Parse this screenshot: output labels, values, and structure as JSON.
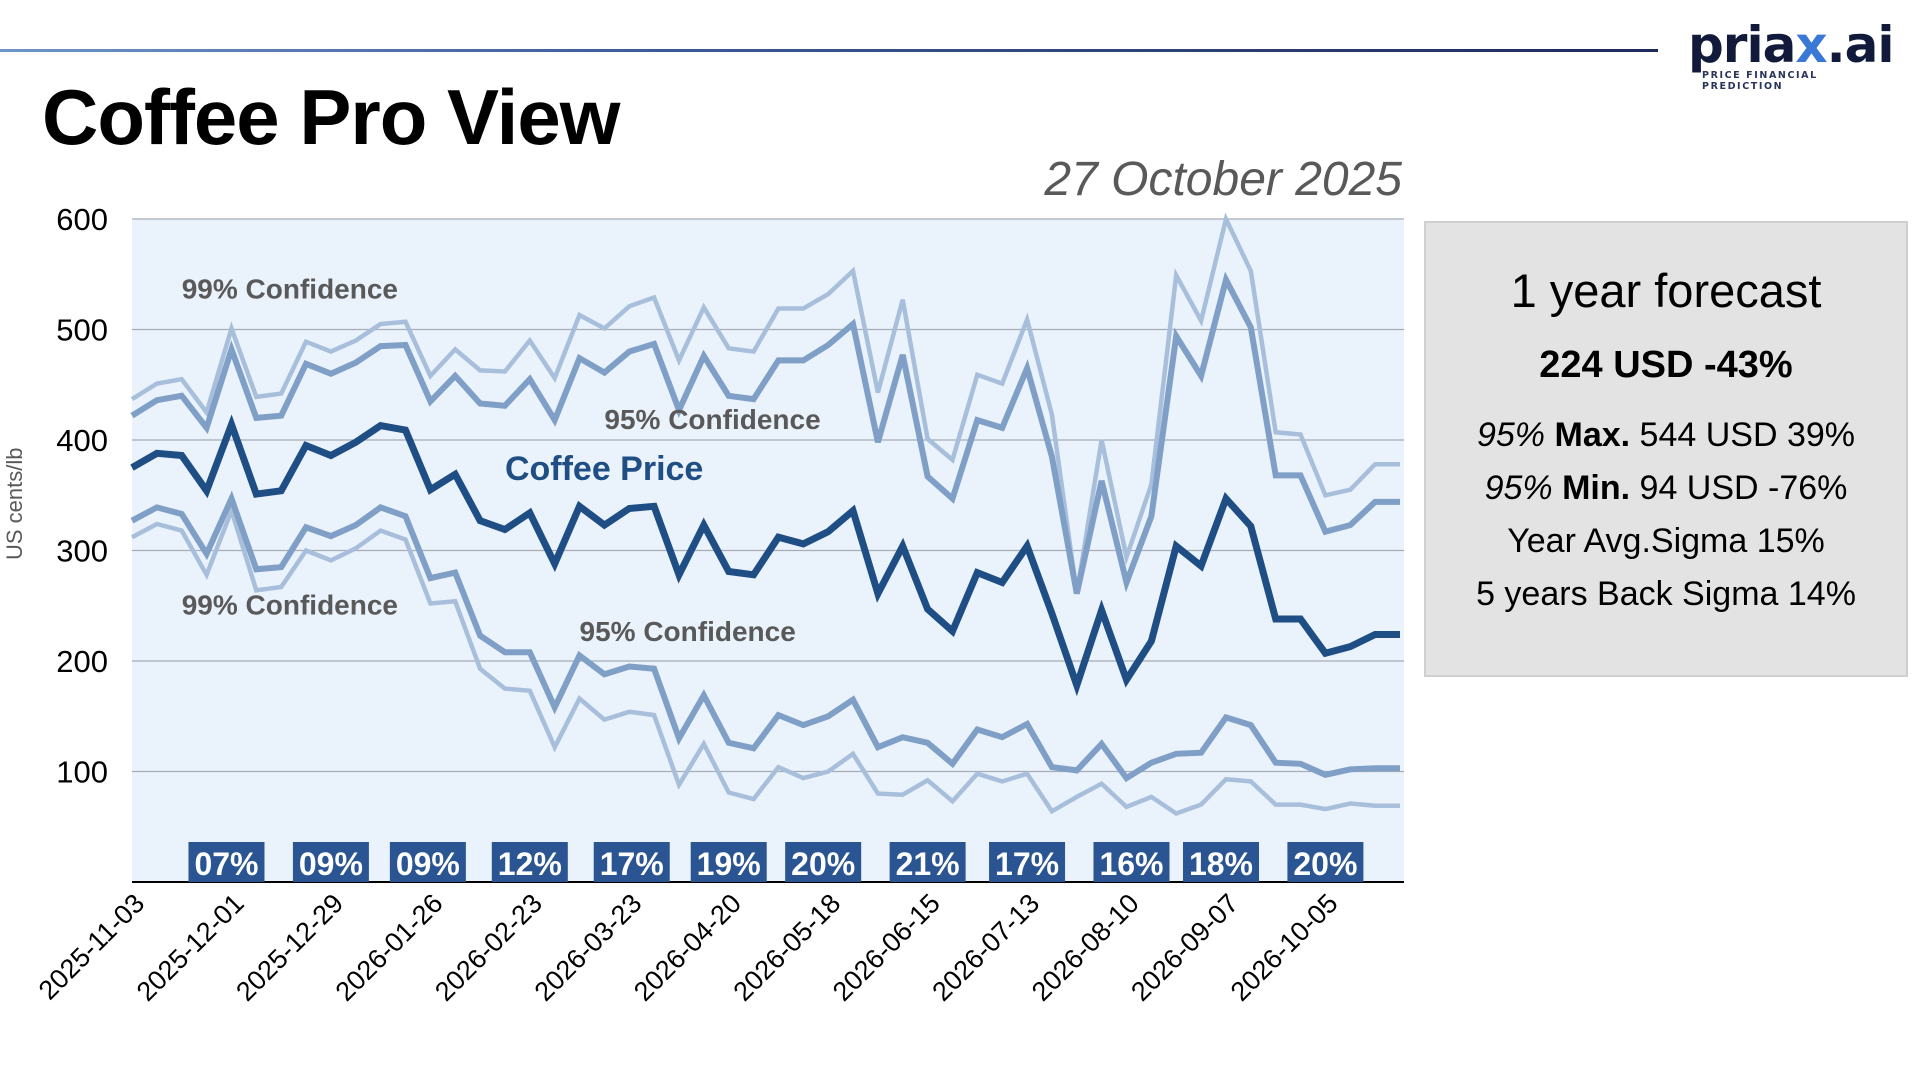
{
  "header": {
    "title": "Coffee Pro View",
    "date": "27 October 2025",
    "logo_text_main": "priax",
    "logo_text_dot": ".",
    "logo_text_suffix": "ai",
    "logo_x": "x",
    "logo_tagline": "PRICE FINANCIAL PREDICTION"
  },
  "colors": {
    "price": "#1f4e85",
    "band95": "#7f9fc6",
    "band99": "#a8bfdc",
    "plot_bg": "#eaf2fc",
    "badge": "#2a5592",
    "label_gray": "#595959"
  },
  "forecast_box": {
    "heading": "1 year forecast",
    "main": "224 USD -43%",
    "max_prefix": "95%",
    "max_label": "Max.",
    "max_value": "544 USD 39%",
    "min_prefix": "95%",
    "min_label": "Min.",
    "min_value": "94 USD -76%",
    "year_sigma": "Year Avg.Sigma 15%",
    "back_sigma": "5 years Back Sigma 14%"
  },
  "chart_data": {
    "type": "line",
    "title": "Coffee Pro View",
    "xlabel": "",
    "ylabel": "US cents/lb",
    "ylim": [
      0,
      600
    ],
    "yticks": [
      100,
      200,
      300,
      400,
      500,
      600
    ],
    "grid": true,
    "x_tick_labels": [
      "2025-11-03",
      "2025-12-01",
      "2025-12-29",
      "2026-01-26",
      "2026-02-23",
      "2026-03-23",
      "2026-04-20",
      "2026-05-18",
      "2026-06-15",
      "2026-07-13",
      "2026-08-10",
      "2026-09-07",
      "2026-10-05"
    ],
    "x_tick_every": 4,
    "n_points": 52,
    "annotations": [
      {
        "text": "99% Confidence",
        "series": "upper_99",
        "value": 528,
        "index": 2
      },
      {
        "text": "95% Confidence",
        "series": "upper_95",
        "value": 410,
        "index": 19
      },
      {
        "text": "Coffee Price",
        "series": "price",
        "value": 364,
        "index": 15
      },
      {
        "text": "99% Confidence",
        "series": "lower_99",
        "value": 242,
        "index": 2
      },
      {
        "text": "95% Confidence",
        "series": "lower_95",
        "value": 218,
        "index": 18
      }
    ],
    "series": [
      {
        "name": "upper_99",
        "label": "99% Confidence",
        "values": [
          437,
          451,
          455,
          425,
          501,
          439,
          442,
          489,
          480,
          490,
          505,
          507,
          458,
          482,
          463,
          462,
          490,
          456,
          513,
          501,
          521,
          529,
          472,
          520,
          483,
          480,
          519,
          519,
          532,
          553,
          443,
          527,
          401,
          382,
          459,
          451,
          509,
          423,
          261,
          400,
          294,
          360,
          549,
          508,
          600,
          553,
          407,
          405,
          350,
          355,
          378,
          378
        ]
      },
      {
        "name": "upper_95",
        "label": "95% Confidence",
        "values": [
          422,
          436,
          440,
          411,
          482,
          420,
          422,
          469,
          460,
          470,
          485,
          486,
          435,
          458,
          433,
          431,
          455,
          418,
          474,
          461,
          480,
          487,
          427,
          476,
          440,
          437,
          472,
          472,
          486,
          505,
          398,
          477,
          367,
          347,
          418,
          411,
          465,
          385,
          261,
          363,
          271,
          331,
          494,
          458,
          545,
          502,
          368,
          368,
          317,
          323,
          344,
          344
        ]
      },
      {
        "name": "price",
        "label": "Coffee Price",
        "values": [
          375,
          388,
          386,
          354,
          414,
          351,
          354,
          395,
          386,
          398,
          413,
          409,
          355,
          369,
          327,
          319,
          334,
          288,
          340,
          323,
          338,
          340,
          278,
          323,
          281,
          278,
          312,
          306,
          317,
          336,
          261,
          304,
          247,
          227,
          280,
          271,
          304,
          243,
          178,
          246,
          183,
          218,
          304,
          286,
          347,
          322,
          238,
          238,
          207,
          213,
          224,
          224
        ]
      },
      {
        "name": "lower_95",
        "label": "95% Confidence",
        "values": [
          327,
          339,
          333,
          297,
          347,
          283,
          285,
          321,
          313,
          323,
          339,
          331,
          275,
          280,
          223,
          208,
          208,
          158,
          205,
          188,
          195,
          193,
          130,
          169,
          126,
          121,
          151,
          142,
          150,
          165,
          122,
          131,
          126,
          107,
          138,
          131,
          143,
          104,
          101,
          125,
          94,
          108,
          116,
          117,
          149,
          142,
          108,
          107,
          97,
          102,
          103,
          103
        ]
      },
      {
        "name": "lower_99",
        "label": "99% Confidence",
        "values": [
          312,
          324,
          318,
          278,
          336,
          264,
          267,
          300,
          291,
          302,
          318,
          310,
          252,
          254,
          193,
          175,
          173,
          122,
          166,
          147,
          154,
          151,
          88,
          125,
          81,
          75,
          104,
          94,
          100,
          116,
          80,
          79,
          92,
          73,
          98,
          91,
          98,
          64,
          77,
          89,
          68,
          77,
          62,
          70,
          93,
          91,
          70,
          70,
          66,
          71,
          69,
          69
        ]
      }
    ],
    "sigma_badges": [
      {
        "text": "07%",
        "index": 3.8
      },
      {
        "text": "09%",
        "index": 8.0
      },
      {
        "text": "09%",
        "index": 11.9
      },
      {
        "text": "12%",
        "index": 16.0
      },
      {
        "text": "17%",
        "index": 20.1
      },
      {
        "text": "19%",
        "index": 24.0
      },
      {
        "text": "20%",
        "index": 27.8
      },
      {
        "text": "21%",
        "index": 32.0
      },
      {
        "text": "17%",
        "index": 36.0
      },
      {
        "text": "16%",
        "index": 40.2
      },
      {
        "text": "18%",
        "index": 43.8
      },
      {
        "text": "20%",
        "index": 48.0
      }
    ]
  }
}
